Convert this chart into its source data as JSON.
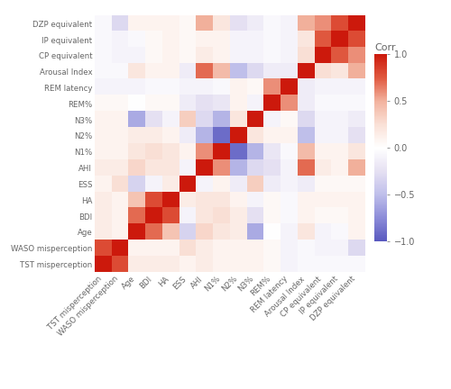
{
  "labels": [
    "TST misperception",
    "WASO misperception",
    "Age",
    "BDI",
    "HA",
    "ESS",
    "AHI",
    "N1%",
    "N2%",
    "N3%",
    "REM%",
    "REM latency",
    "Arousal Index",
    "CP equivalent",
    "IP equivalent",
    "DZP equivalent"
  ],
  "corr_matrix": [
    [
      1.0,
      0.8,
      0.15,
      0.15,
      0.15,
      0.1,
      0.15,
      0.1,
      0.1,
      0.1,
      0.05,
      -0.1,
      -0.05,
      -0.05,
      -0.05,
      -0.05
    ],
    [
      0.8,
      1.0,
      0.1,
      0.1,
      0.1,
      0.25,
      0.15,
      0.1,
      0.1,
      0.1,
      0.05,
      -0.1,
      -0.05,
      -0.1,
      -0.1,
      -0.3
    ],
    [
      0.15,
      0.1,
      1.0,
      0.7,
      0.4,
      -0.35,
      0.3,
      0.2,
      0.15,
      -0.6,
      0.0,
      -0.1,
      0.2,
      -0.1,
      -0.05,
      0.1
    ],
    [
      0.15,
      0.1,
      0.7,
      1.0,
      0.8,
      -0.1,
      0.2,
      0.25,
      0.15,
      -0.25,
      0.05,
      -0.05,
      0.1,
      0.05,
      0.05,
      0.1
    ],
    [
      0.15,
      0.1,
      0.4,
      0.8,
      1.0,
      0.15,
      0.2,
      0.2,
      0.1,
      -0.1,
      0.05,
      -0.05,
      0.1,
      0.1,
      0.1,
      0.1
    ],
    [
      0.1,
      0.25,
      -0.35,
      -0.1,
      0.15,
      1.0,
      -0.1,
      0.1,
      -0.15,
      0.35,
      -0.15,
      -0.1,
      -0.15,
      0.05,
      0.05,
      0.05
    ],
    [
      0.15,
      0.15,
      0.3,
      0.2,
      0.2,
      -0.1,
      1.0,
      0.6,
      -0.55,
      -0.3,
      -0.25,
      -0.1,
      0.7,
      0.15,
      0.1,
      0.5
    ],
    [
      0.1,
      0.1,
      0.2,
      0.25,
      0.2,
      0.1,
      0.6,
      1.0,
      -0.9,
      -0.55,
      -0.2,
      -0.05,
      0.45,
      0.1,
      0.1,
      0.2
    ],
    [
      0.1,
      0.1,
      0.15,
      0.15,
      0.1,
      -0.15,
      -0.55,
      -0.9,
      1.0,
      0.2,
      0.1,
      0.1,
      -0.5,
      -0.1,
      -0.1,
      -0.25
    ],
    [
      0.1,
      0.1,
      -0.6,
      -0.25,
      -0.1,
      0.35,
      -0.3,
      -0.55,
      0.2,
      1.0,
      -0.1,
      0.05,
      -0.3,
      -0.1,
      -0.1,
      -0.15
    ],
    [
      0.05,
      0.05,
      0.0,
      0.05,
      0.05,
      -0.15,
      -0.25,
      -0.2,
      0.1,
      -0.1,
      1.0,
      0.6,
      -0.15,
      -0.05,
      -0.05,
      -0.05
    ],
    [
      -0.1,
      -0.1,
      -0.1,
      -0.05,
      -0.05,
      -0.1,
      -0.1,
      -0.05,
      0.1,
      0.05,
      0.6,
      1.0,
      -0.15,
      -0.1,
      -0.1,
      -0.1
    ],
    [
      -0.05,
      -0.05,
      0.2,
      0.1,
      0.1,
      -0.15,
      0.7,
      0.45,
      -0.5,
      -0.3,
      -0.15,
      -0.15,
      1.0,
      0.25,
      0.2,
      0.5
    ],
    [
      -0.05,
      -0.1,
      -0.1,
      0.05,
      0.1,
      0.05,
      0.15,
      0.1,
      -0.1,
      -0.1,
      -0.05,
      -0.1,
      0.25,
      1.0,
      0.75,
      0.6
    ],
    [
      -0.05,
      -0.1,
      -0.05,
      0.05,
      0.1,
      0.05,
      0.1,
      0.1,
      -0.1,
      -0.1,
      -0.05,
      -0.1,
      0.2,
      0.75,
      1.0,
      0.8
    ],
    [
      -0.05,
      -0.3,
      0.1,
      0.1,
      0.1,
      0.05,
      0.5,
      0.2,
      -0.25,
      -0.15,
      -0.05,
      -0.1,
      0.5,
      0.6,
      0.8,
      1.0
    ]
  ],
  "title": "Corr",
  "vmin": -1.0,
  "vmax": 1.0,
  "colorbar_ticks": [
    1.0,
    0.5,
    0.0,
    -0.5,
    -1.0
  ],
  "background_color": "#ffffff",
  "figsize": [
    5.0,
    4.32
  ],
  "dpi": 100
}
